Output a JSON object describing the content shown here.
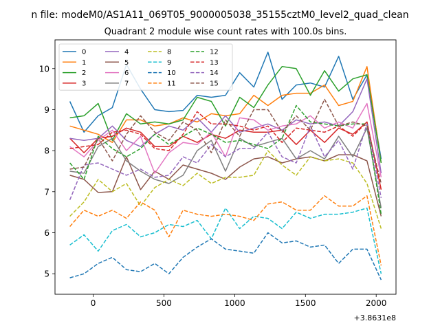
{
  "chart_data": {
    "type": "line",
    "suptitle": "n file: modeM0/AS1A11_069T05_9000005038_35155cztM0_level2_quad_clean",
    "title": "Quadrant 2 module wise count rates with 100.0s bins.",
    "xlabel": "",
    "ylabel": "",
    "x_offset_label": "+3.8631e8",
    "xlim": [
      -270,
      2140
    ],
    "ylim": [
      4.5,
      10.7
    ],
    "xticks": [
      0,
      500,
      1000,
      1500,
      2000
    ],
    "yticks": [
      5,
      6,
      7,
      8,
      9,
      10
    ],
    "grid": false,
    "legend": {
      "position": "top-left",
      "ncol": 4
    },
    "x": [
      -165,
      -65,
      35,
      135,
      235,
      335,
      435,
      535,
      635,
      735,
      835,
      935,
      1035,
      1135,
      1235,
      1335,
      1435,
      1535,
      1635,
      1735,
      1835,
      1935,
      2035
    ],
    "series": [
      {
        "name": "0",
        "color": "#1f77b4",
        "dash": "solid",
        "values": [
          9.2,
          8.45,
          8.85,
          9.05,
          10.1,
          9.5,
          9.0,
          8.95,
          8.98,
          9.35,
          9.3,
          9.35,
          9.9,
          9.55,
          10.4,
          9.25,
          9.6,
          9.65,
          9.55,
          10.3,
          9.25,
          9.85,
          7.8
        ]
      },
      {
        "name": "1",
        "color": "#ff7f0e",
        "dash": "solid",
        "values": [
          8.6,
          8.5,
          8.4,
          8.2,
          8.75,
          8.75,
          8.6,
          8.65,
          8.8,
          8.7,
          8.9,
          8.85,
          8.9,
          9.35,
          9.1,
          9.35,
          9.4,
          9.4,
          9.6,
          9.1,
          9.2,
          10.05,
          7.7
        ]
      },
      {
        "name": "2",
        "color": "#2ca02c",
        "dash": "solid",
        "values": [
          8.8,
          8.85,
          9.15,
          8.25,
          8.9,
          8.65,
          8.7,
          8.65,
          8.75,
          9.3,
          9.2,
          8.6,
          9.3,
          9.05,
          9.6,
          10.05,
          10.0,
          9.35,
          9.95,
          9.45,
          9.75,
          9.85,
          7.7
        ]
      },
      {
        "name": "3",
        "color": "#d62728",
        "dash": "solid",
        "values": [
          8.3,
          7.95,
          8.3,
          8.35,
          8.55,
          8.45,
          8.1,
          8.1,
          8.35,
          8.2,
          8.4,
          8.3,
          8.5,
          8.45,
          8.45,
          8.5,
          8.15,
          8.5,
          8.2,
          8.55,
          8.4,
          8.7,
          7.05
        ]
      },
      {
        "name": "4",
        "color": "#9467bd",
        "dash": "solid",
        "values": [
          8.3,
          8.25,
          8.3,
          8.6,
          8.25,
          8.1,
          8.4,
          8.6,
          8.5,
          8.8,
          8.45,
          8.85,
          8.45,
          8.55,
          8.65,
          8.5,
          8.75,
          8.65,
          8.7,
          8.6,
          8.95,
          9.75,
          7.45
        ]
      },
      {
        "name": "5",
        "color": "#8c564b",
        "dash": "solid",
        "values": [
          7.4,
          7.3,
          6.98,
          7.0,
          7.85,
          7.05,
          7.5,
          7.3,
          7.65,
          7.55,
          7.45,
          7.3,
          7.6,
          7.8,
          7.85,
          7.7,
          7.8,
          7.85,
          7.75,
          7.9,
          7.9,
          7.75,
          6.4
        ]
      },
      {
        "name": "6",
        "color": "#e377c2",
        "dash": "solid",
        "values": [
          8.1,
          7.85,
          8.25,
          8.5,
          8.0,
          8.35,
          7.45,
          7.95,
          8.2,
          8.15,
          8.45,
          7.85,
          8.8,
          8.75,
          8.5,
          8.6,
          8.65,
          8.85,
          8.55,
          8.7,
          8.55,
          9.15,
          7.35
        ]
      },
      {
        "name": "7",
        "color": "#7f7f7f",
        "dash": "solid",
        "values": [
          7.5,
          7.45,
          8.1,
          8.3,
          7.75,
          7.5,
          7.3,
          7.2,
          7.4,
          8.0,
          8.25,
          7.5,
          8.3,
          8.1,
          8.2,
          8.3,
          7.8,
          8.0,
          7.8,
          8.35,
          7.85,
          8.55,
          6.6
        ]
      },
      {
        "name": "8",
        "color": "#bcbd22",
        "dash": "dashed",
        "values": [
          6.4,
          6.75,
          7.3,
          7.0,
          7.2,
          6.65,
          7.1,
          7.3,
          7.15,
          7.45,
          7.2,
          7.35,
          7.35,
          7.4,
          8.0,
          7.65,
          7.4,
          7.85,
          7.75,
          7.8,
          7.7,
          7.2,
          6.1
        ]
      },
      {
        "name": "9",
        "color": "#17becf",
        "dash": "dashed",
        "values": [
          5.7,
          5.95,
          5.55,
          6.05,
          6.2,
          5.9,
          6.0,
          6.2,
          6.15,
          6.3,
          5.85,
          6.6,
          6.1,
          6.4,
          6.35,
          6.1,
          6.5,
          6.35,
          6.45,
          6.45,
          6.5,
          6.6,
          5.0
        ]
      },
      {
        "name": "10",
        "color": "#1f77b4",
        "dash": "dashed",
        "values": [
          4.9,
          5.0,
          5.25,
          5.4,
          5.1,
          5.05,
          5.25,
          5.0,
          5.4,
          5.65,
          5.85,
          5.6,
          5.55,
          5.5,
          6.0,
          5.75,
          5.8,
          5.65,
          5.7,
          5.25,
          5.6,
          5.6,
          4.85
        ]
      },
      {
        "name": "11",
        "color": "#ff7f0e",
        "dash": "dashed",
        "values": [
          6.15,
          6.55,
          6.4,
          6.55,
          6.35,
          6.75,
          6.55,
          5.9,
          6.55,
          6.45,
          6.4,
          6.45,
          6.4,
          6.3,
          6.7,
          6.75,
          6.55,
          6.55,
          6.9,
          6.65,
          6.65,
          6.9,
          5.2
        ]
      },
      {
        "name": "12",
        "color": "#2ca02c",
        "dash": "dashed",
        "values": [
          7.7,
          7.3,
          8.35,
          8.05,
          7.85,
          8.05,
          8.4,
          8.15,
          8.35,
          8.55,
          8.4,
          8.2,
          8.25,
          8.15,
          8.05,
          8.3,
          9.1,
          8.7,
          8.65,
          8.6,
          8.65,
          8.65,
          6.45
        ]
      },
      {
        "name": "13",
        "color": "#d62728",
        "dash": "dashed",
        "values": [
          8.05,
          8.1,
          8.15,
          8.45,
          8.5,
          8.4,
          8.05,
          8.0,
          8.4,
          8.95,
          8.65,
          8.65,
          8.6,
          8.5,
          8.6,
          8.2,
          8.55,
          8.5,
          8.45,
          8.6,
          8.35,
          8.7,
          7.05
        ]
      },
      {
        "name": "14",
        "color": "#9467bd",
        "dash": "dashed",
        "values": [
          6.8,
          7.65,
          7.7,
          7.55,
          7.4,
          7.55,
          7.35,
          7.4,
          7.85,
          7.7,
          8.15,
          7.85,
          8.05,
          8.05,
          8.45,
          7.85,
          7.7,
          8.6,
          7.85,
          8.25,
          7.55,
          8.65,
          6.85
        ]
      },
      {
        "name": "15",
        "color": "#8c564b",
        "dash": "dashed",
        "values": [
          7.55,
          7.6,
          8.3,
          7.75,
          8.4,
          8.85,
          8.45,
          8.25,
          8.7,
          8.5,
          7.95,
          8.75,
          8.35,
          9.0,
          9.0,
          8.45,
          8.85,
          8.5,
          9.25,
          8.6,
          8.7,
          8.6,
          7.2
        ]
      }
    ]
  }
}
